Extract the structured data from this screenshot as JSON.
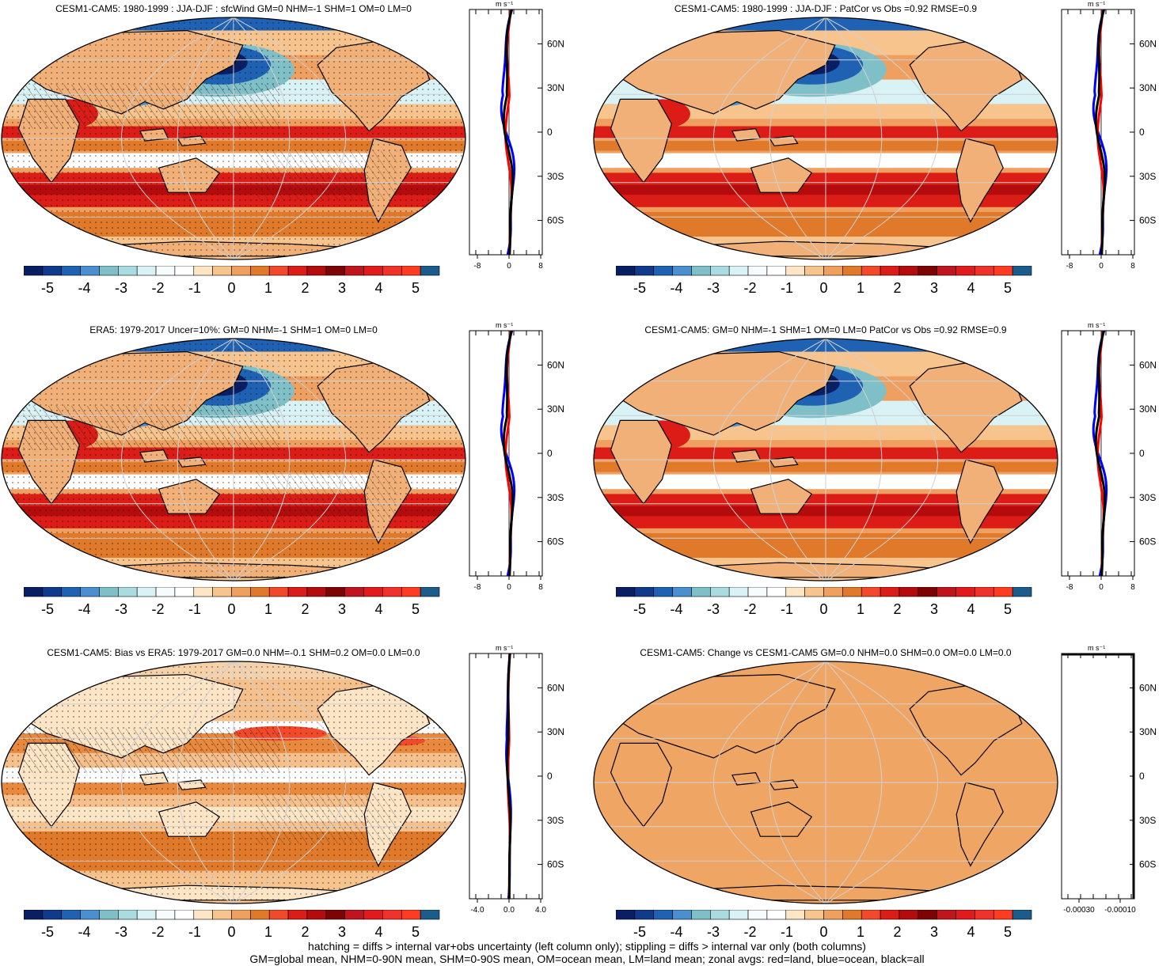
{
  "colorbar": {
    "colors": [
      "#0a1e64",
      "#103a8c",
      "#1f62b4",
      "#4a8fd0",
      "#7fc0c8",
      "#a9dbe0",
      "#d8f2f6",
      "#f6fbfd",
      "#ffffff",
      "#fde5c6",
      "#f7c48d",
      "#eea05c",
      "#e07a2a",
      "#f2492b",
      "#dc1c16",
      "#b40c0c",
      "#7d0404",
      "#c0141e",
      "#e31a1c",
      "#f0322a",
      "#ff3c22",
      "#1a5c8c"
    ],
    "tick_labels": [
      "-5",
      "-4",
      "-3",
      "-2",
      "-1",
      "0",
      "1",
      "2",
      "3",
      "4",
      "5"
    ]
  },
  "zonal_axis": {
    "unit": "m s⁻¹",
    "lat_labels": [
      "60N",
      "30N",
      "0",
      "30S",
      "60S"
    ]
  },
  "panels": [
    {
      "id": "p1",
      "title": "CESM1-CAM5: 1980-1999 : JJA-DJF : sfcWind GM=0 NHM=-1 SHM=1 OM=0 LM=0",
      "x_ticks": [
        "-8",
        "0",
        "8"
      ],
      "style": "normal"
    },
    {
      "id": "p2",
      "title": "CESM1-CAM5: 1980-1999 : JJA-DJF : PatCor vs Obs =0.92 RMSE=0.9",
      "x_ticks": [
        "-8",
        "0",
        "8"
      ],
      "style": "normal"
    },
    {
      "id": "p3",
      "title": "ERA5: 1979-2017 Uncer=10%: GM=0 NHM=-1 SHM=1 OM=0 LM=0",
      "x_ticks": [
        "-8",
        "0",
        "8"
      ],
      "style": "normal"
    },
    {
      "id": "p4",
      "title": "CESM1-CAM5: GM=0 NHM=-1 SHM=1 OM=0 LM=0 PatCor vs Obs =0.92 RMSE=0.9",
      "x_ticks": [
        "-8",
        "0",
        "8"
      ],
      "style": "normal"
    },
    {
      "id": "p5",
      "title": "CESM1-CAM5: Bias vs ERA5: 1979-2017 GM=0.0 NHM=-0.1 SHM=0.2 OM=0.0 LM=0.0",
      "x_ticks": [
        "-4.0",
        "0.0",
        "4.0"
      ],
      "style": "bias"
    },
    {
      "id": "p6",
      "title": "CESM1-CAM5: Change vs CESM1-CAM5 GM=0.0 NHM=0.0 SHM=0.0 OM=0.0 LM=0.0",
      "x_ticks": [
        "-0.00030",
        "-0.00010"
      ],
      "style": "flat"
    }
  ],
  "footer": {
    "line1": "hatching = diffs > internal var+obs uncertainty (left column only); stippling = diffs > internal var only (both columns)",
    "line2": "GM=global mean, NHM=0-90N mean, SHM=0-90S mean, OM=ocean mean, LM=land mean; zonal avgs: red=land, blue=ocean, black=all"
  },
  "chart_data": {
    "type": "heatmap",
    "variable": "sfcWind",
    "colorbar_range": [
      -5,
      5
    ],
    "zonal_line_colors": {
      "land": "#ff0000",
      "ocean": "#0000ff",
      "all": "#000000"
    }
  }
}
